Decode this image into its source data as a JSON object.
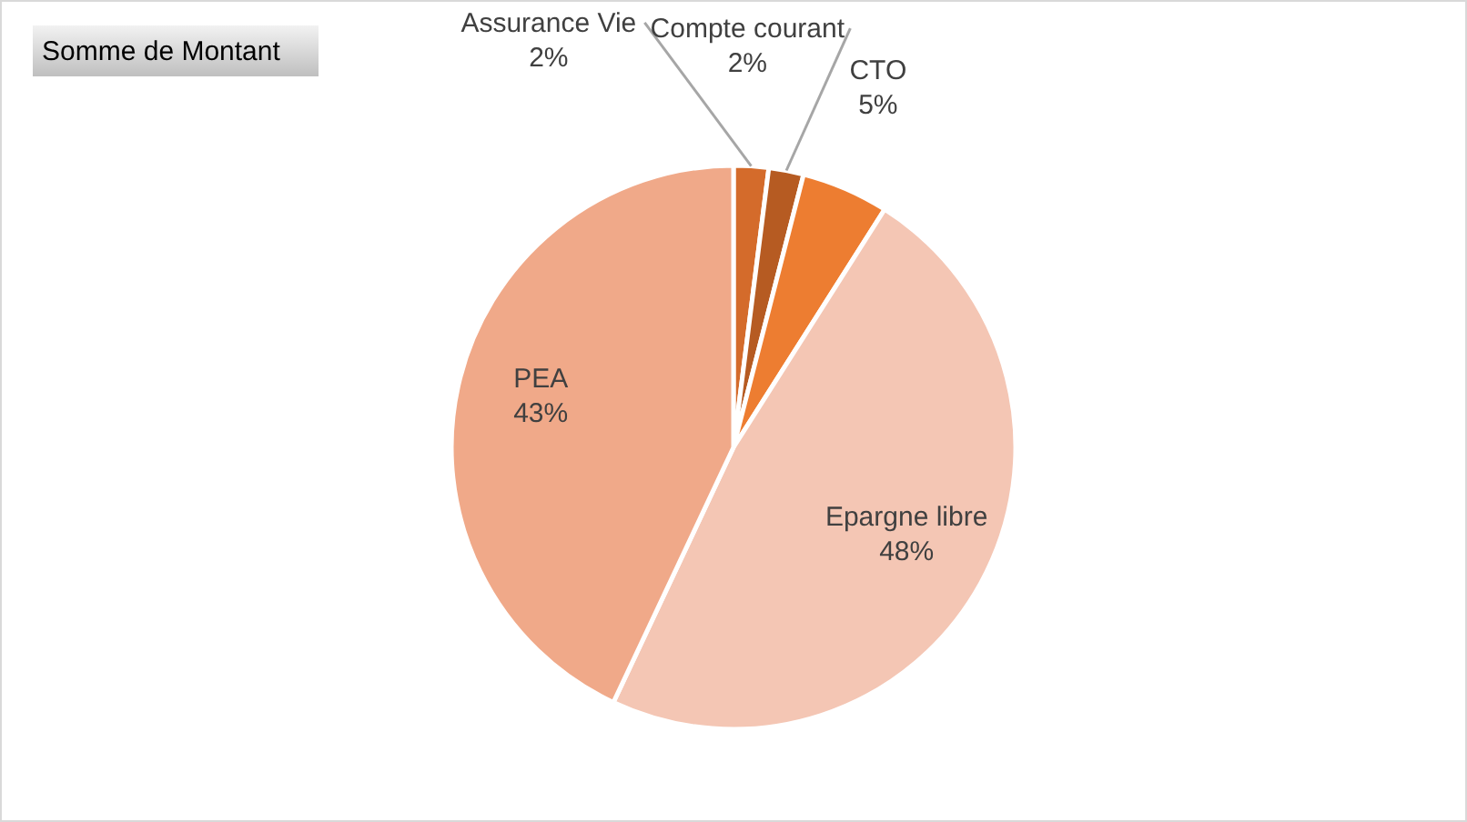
{
  "chart_data": {
    "type": "pie",
    "title": "Somme de Montant",
    "categories": [
      "Assurance Vie",
      "Compte courant",
      "CTO",
      "Epargne libre",
      "PEA"
    ],
    "values": [
      2,
      2,
      5,
      48,
      43
    ],
    "value_labels": [
      "2%",
      "2%",
      "5%",
      "48%",
      "43%"
    ],
    "colors": [
      "#d46b2b",
      "#b65b22",
      "#ed7d31",
      "#f4c6b4",
      "#f0a989"
    ],
    "legend": false
  }
}
